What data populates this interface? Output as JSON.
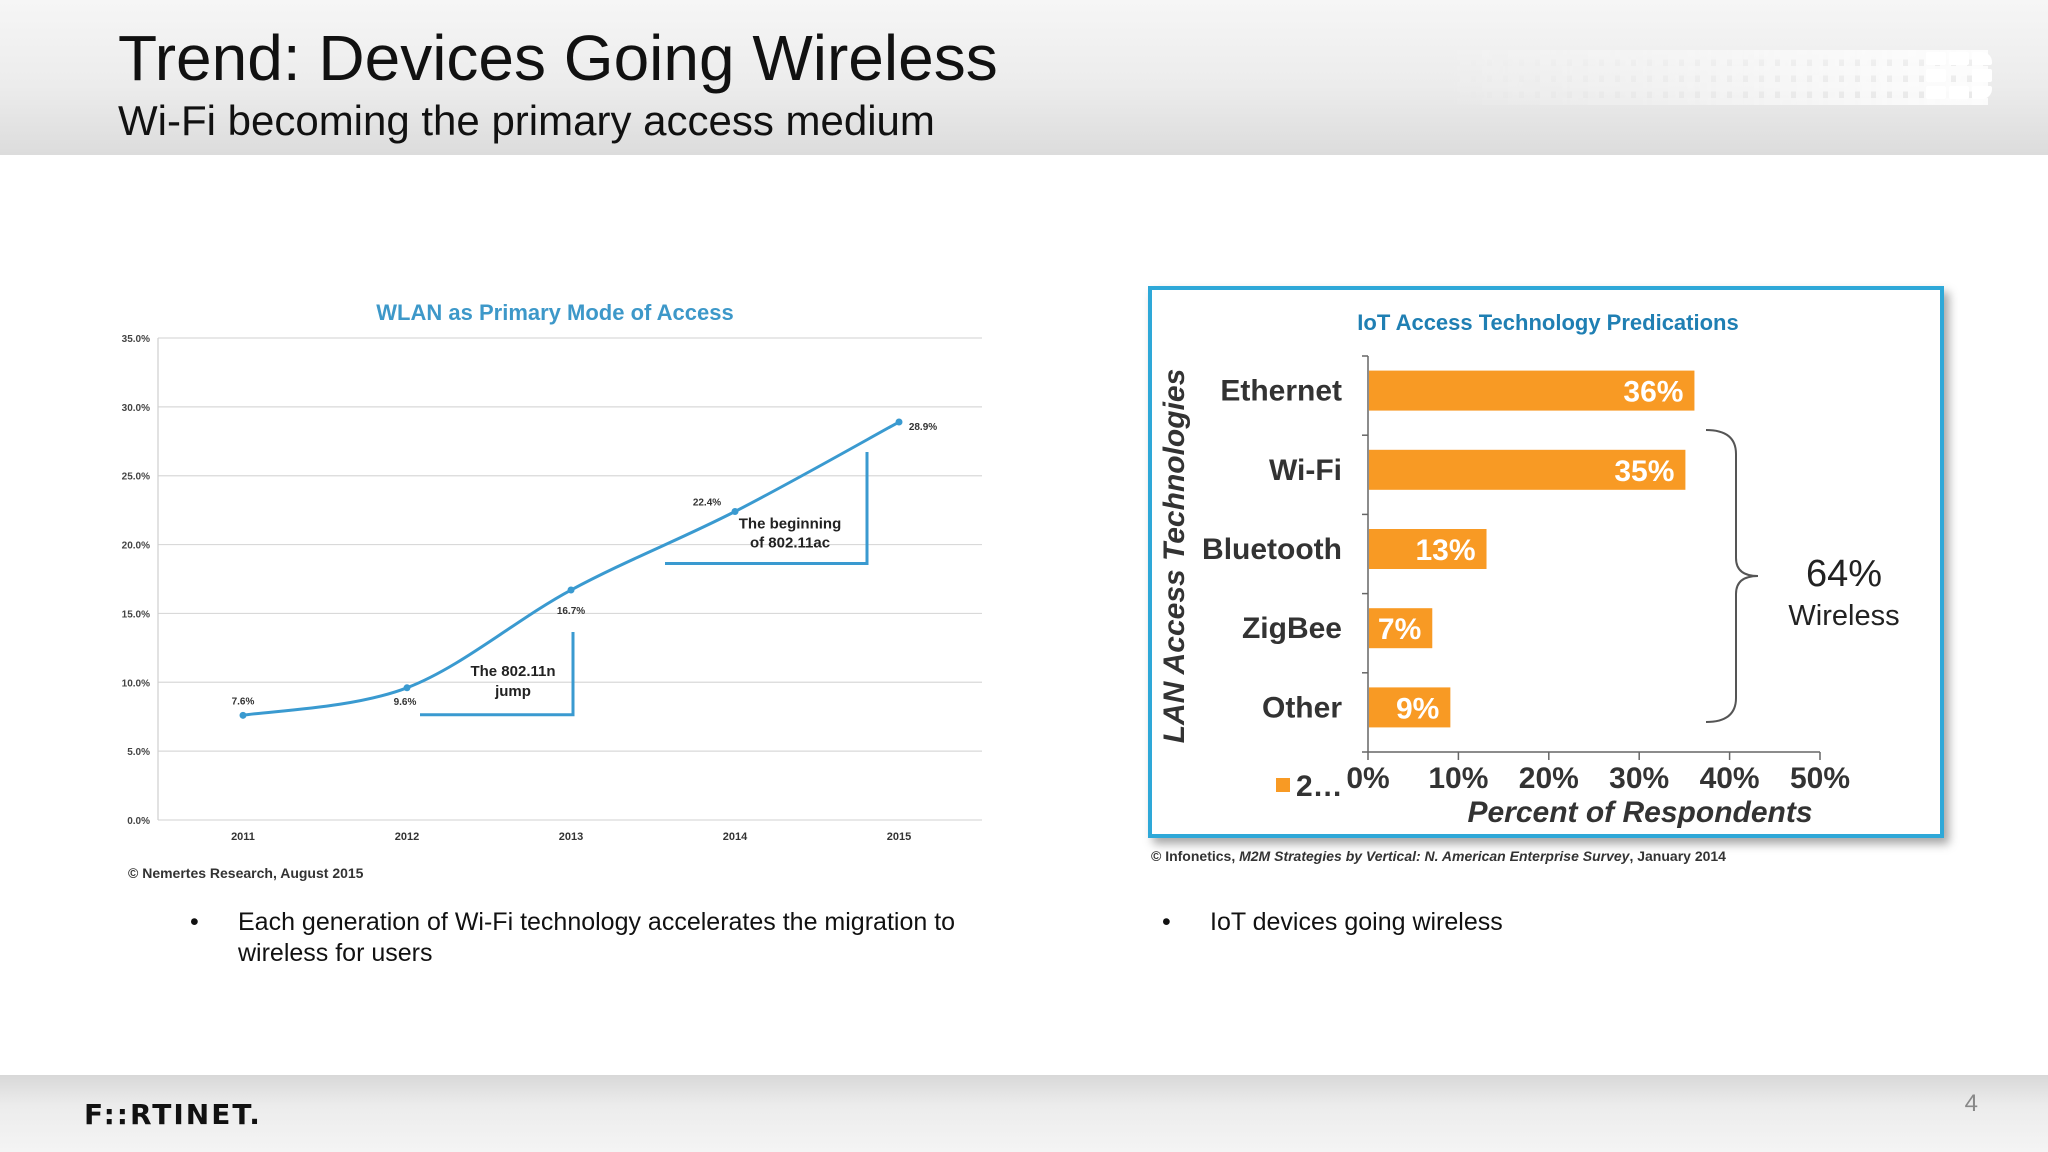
{
  "slide": {
    "title": "Trend: Devices Going Wireless",
    "subtitle": "Wi-Fi becoming the primary access medium",
    "page_number": "4",
    "logo_text": "F::RTINET.",
    "colors": {
      "accent_blue": "#2ea8d8",
      "bar_orange": "#f89a24",
      "line_blue": "#3a9ad0"
    }
  },
  "left": {
    "credit": "© Nemertes Research, August 2015",
    "bullet": "Each generation of Wi-Fi technology accelerates the migration to wireless for users"
  },
  "right": {
    "credit_prefix": "© Infonetics, ",
    "credit_italic": "M2M Strategies by Vertical: N. American Enterprise Survey",
    "credit_suffix": ", January 2014",
    "bullet": "IoT devices going wireless",
    "brace_value": "64%",
    "brace_label": "Wireless"
  },
  "chart_data": [
    {
      "type": "line",
      "title": "WLAN as Primary Mode of Access",
      "x": [
        "2011",
        "2012",
        "2013",
        "2014",
        "2015"
      ],
      "series": [
        {
          "values": [
            7.6,
            9.6,
            16.7,
            22.4,
            28.9
          ]
        }
      ],
      "data_labels": [
        "7.6%",
        "9.6%",
        "16.7%",
        "22.4%",
        "28.9%"
      ],
      "y_ticks": [
        "0.0%",
        "5.0%",
        "10.0%",
        "15.0%",
        "20.0%",
        "25.0%",
        "30.0%",
        "35.0%"
      ],
      "ylim": [
        0,
        35
      ],
      "grid": true,
      "annotations": [
        {
          "lines": [
            "The 802.11n",
            "jump"
          ],
          "x": "2013"
        },
        {
          "lines": [
            "The beginning",
            "of 802.11ac"
          ],
          "x": "2015"
        }
      ],
      "xlabel": "",
      "ylabel": ""
    },
    {
      "type": "bar",
      "orientation": "horizontal",
      "title": "IoT Access Technology Predications",
      "categories": [
        "Ethernet",
        "Wi-Fi",
        "Bluetooth",
        "ZigBee",
        "Other"
      ],
      "values": [
        36,
        35,
        13,
        7,
        9
      ],
      "data_labels": [
        "36%",
        "35%",
        "13%",
        "7%",
        "9%"
      ],
      "x_ticks": [
        "0%",
        "10%",
        "20%",
        "30%",
        "40%",
        "50%"
      ],
      "xlim": [
        0,
        50
      ],
      "xlabel": "Percent of Respondents",
      "ylabel": "LAN Access Technologies",
      "legend": "2…",
      "legend_position": "bottom-left"
    }
  ]
}
